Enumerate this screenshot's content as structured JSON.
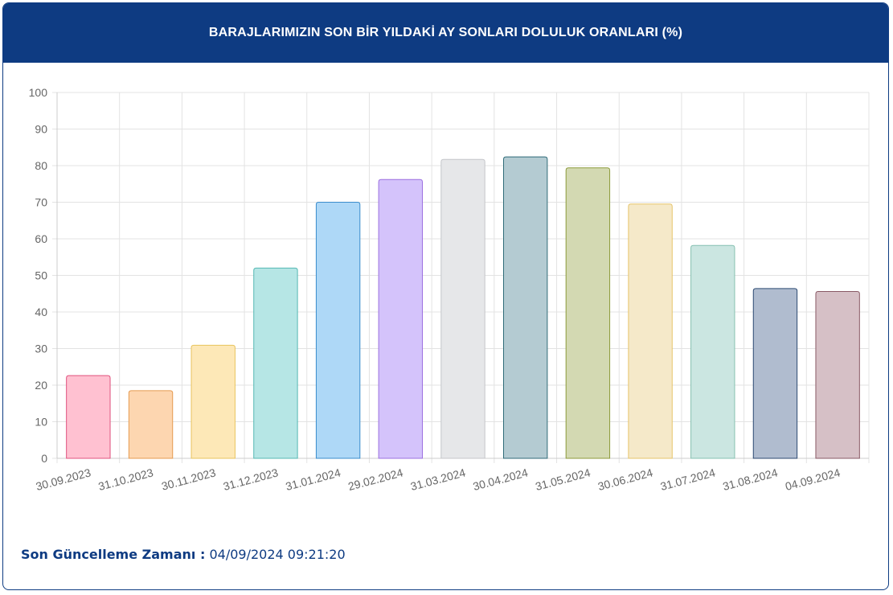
{
  "header": {
    "title": "BARAJLARIMIZIN SON BİR YILDAKİ AY SONLARI DOLULUK ORANLARI (%)"
  },
  "chart_data": {
    "type": "bar",
    "title": "BARAJLARIMIZIN SON BİR YILDAKİ AY SONLARI DOLULUK ORANLARI (%)",
    "categories": [
      "30.09.2023",
      "31.10.2023",
      "30.11.2023",
      "31.12.2023",
      "31.01.2024",
      "29.02.2024",
      "31.03.2024",
      "30.04.2024",
      "31.05.2024",
      "30.06.2024",
      "31.07.2024",
      "31.08.2024",
      "04.09.2024"
    ],
    "values": [
      22.6,
      18.5,
      30.9,
      52.0,
      70.0,
      76.2,
      81.7,
      82.4,
      79.4,
      69.5,
      58.2,
      46.4,
      45.6
    ],
    "ylim": [
      0,
      100
    ],
    "yticks": [
      0,
      10,
      20,
      30,
      40,
      50,
      60,
      70,
      80,
      90,
      100
    ],
    "grid": true,
    "legend": "none",
    "fills": [
      "#ffc1d1",
      "#fdd6b0",
      "#fde8b7",
      "#b6e6e5",
      "#aed8f7",
      "#d4c3fb",
      "#e6e7e9",
      "#b4cbd2",
      "#d3d9b2",
      "#f5e9c9",
      "#cbe6e1",
      "#b0bccf",
      "#d6c0c6"
    ],
    "strokes": [
      "#e0527e",
      "#e59a4f",
      "#e8c35e",
      "#54b8b3",
      "#3a8ccc",
      "#9b6fe0",
      "#c4c6c9",
      "#2f6b78",
      "#8c9a3b",
      "#e6c46a",
      "#86c0b1",
      "#2c4a72",
      "#8a5a66"
    ]
  },
  "footer": {
    "label": "Son Güncelleme Zamanı :",
    "value": "04/09/2024 09:21:20"
  }
}
